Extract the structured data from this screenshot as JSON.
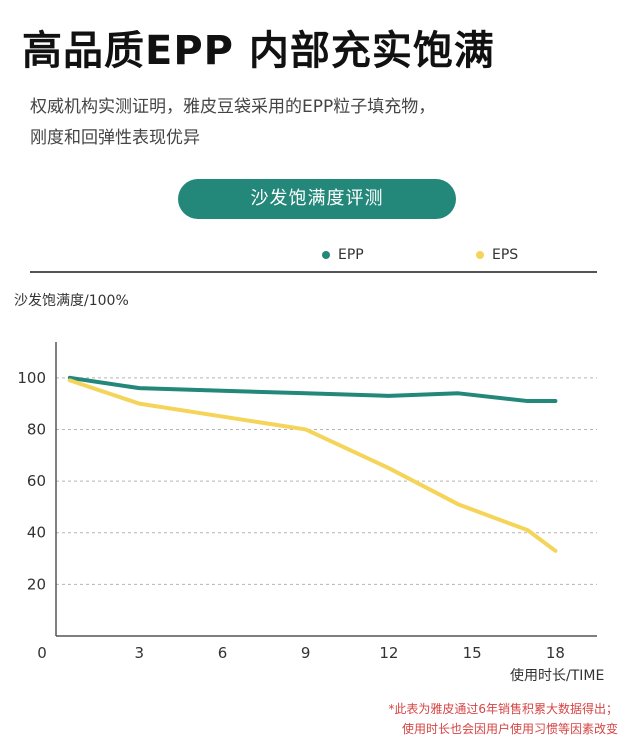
{
  "header": {
    "title": "高品质EPP 内部充实饱满",
    "subtitle_line1": "权威机构实测证明，雅皮豆袋采用的EPP粒子填充物，",
    "subtitle_line2": "刚度和回弹性表现优异",
    "badge": "沙发饱满度评测"
  },
  "footnote": {
    "line1": "*此表为雅皮通过6年销售积累大数据得出；",
    "line2": "使用时长也会因用户使用习惯等因素改变"
  },
  "colors": {
    "epp": "#23877a",
    "eps": "#f5d45a",
    "grid": "#b5b5b5",
    "axis": "#555555"
  },
  "chart_data": {
    "type": "line",
    "title": "沙发饱满度评测",
    "ylabel": "沙发饱满度/100%",
    "xlabel": "使用时长/TIME",
    "xlim": [
      0,
      19.5
    ],
    "ylim": [
      0,
      110
    ],
    "xticks": [
      0,
      3,
      6,
      9,
      12,
      15,
      18
    ],
    "yticks": [
      20,
      40,
      60,
      80,
      100
    ],
    "grid": true,
    "legend_position": "top-right",
    "series": [
      {
        "name": "EPP",
        "color_key": "epp",
        "x": [
          0.5,
          3,
          6,
          9,
          12,
          14.5,
          17,
          18
        ],
        "y": [
          100,
          96,
          95,
          94,
          93,
          94,
          91,
          91
        ]
      },
      {
        "name": "EPS",
        "color_key": "eps",
        "x": [
          0.5,
          3,
          6,
          9,
          12,
          14.5,
          17,
          18
        ],
        "y": [
          99,
          90,
          85,
          80,
          65,
          51,
          41,
          33
        ]
      }
    ]
  }
}
